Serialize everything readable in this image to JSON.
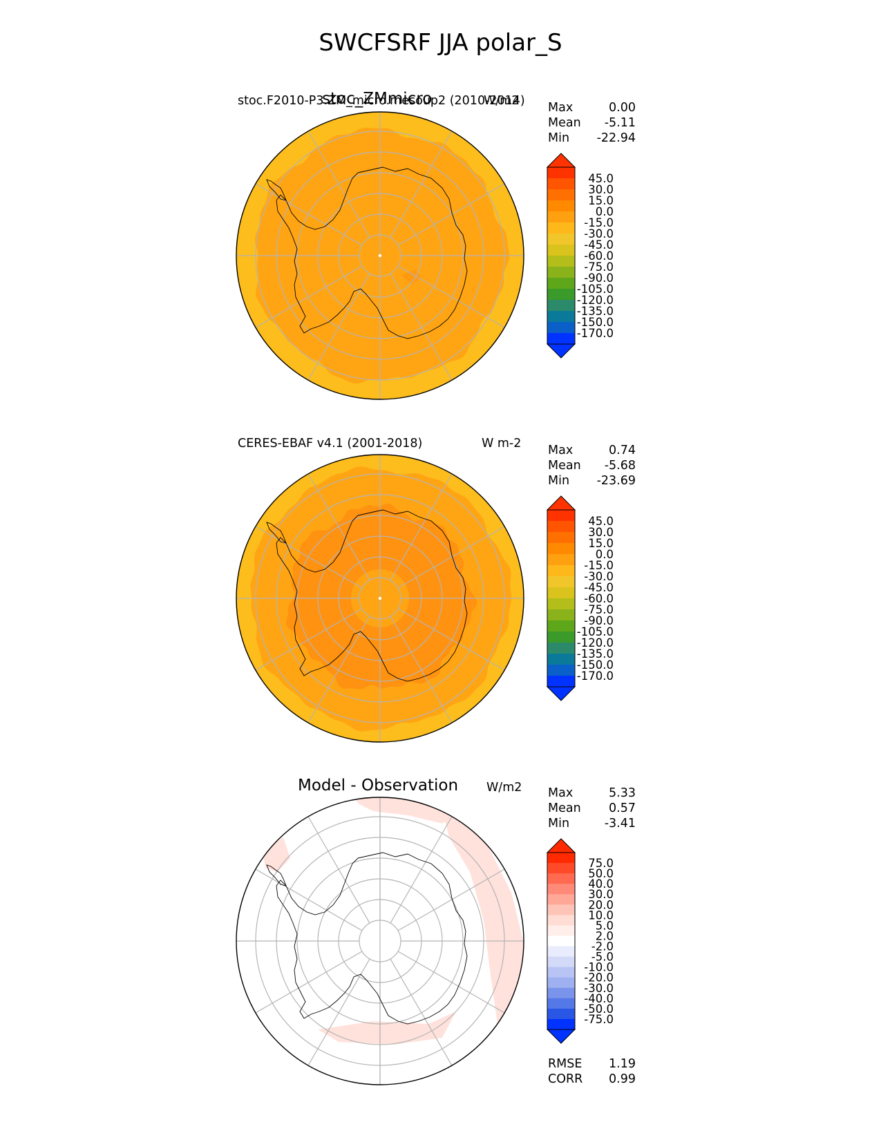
{
  "title": "SWCFSRF JJA polar_S",
  "panels": [
    {
      "id": "test",
      "left_label": "stoc.F2010-P3.ZM_micro.mesoup2 (2010-2014)",
      "overlap_label": "stoc_ZMmicro",
      "right_label": "W/m2",
      "stats": [
        {
          "k": "Max",
          "v": "0.00"
        },
        {
          "k": "Mean",
          "v": "-5.11"
        },
        {
          "k": "Min",
          "v": "-22.94"
        }
      ],
      "colorbar_ticks": [
        "45.0",
        "30.0",
        "15.0",
        "0.0",
        "-15.0",
        "-30.0",
        "-45.0",
        "-60.0",
        "-75.0",
        "-90.0",
        "-105.0",
        "-120.0",
        "-135.0",
        "-150.0",
        "-170.0"
      ],
      "colorbar_colors": [
        "#ff3300",
        "#ff5500",
        "#ff7000",
        "#ff8a00",
        "#ffa010",
        "#ffb81a",
        "#f0c62a",
        "#d9c31c",
        "#b3be1a",
        "#8ab21a",
        "#5ea61a",
        "#3a9a2a",
        "#2b8a6a",
        "#0b7a9a",
        "#0a60c8",
        "#0033ff"
      ],
      "fill_colors": {
        "outer": "#fdbd1c",
        "inner": "#ffa514",
        "patch": "#ff9a10"
      }
    },
    {
      "id": "ref",
      "left_label": "CERES-EBAF v4.1 (2001-2018)",
      "right_label": "W m-2",
      "stats": [
        {
          "k": "Max",
          "v": "0.74"
        },
        {
          "k": "Mean",
          "v": "-5.68"
        },
        {
          "k": "Min",
          "v": "-23.69"
        }
      ],
      "colorbar_ticks": [
        "45.0",
        "30.0",
        "15.0",
        "0.0",
        "-15.0",
        "-30.0",
        "-45.0",
        "-60.0",
        "-75.0",
        "-90.0",
        "-105.0",
        "-120.0",
        "-135.0",
        "-150.0",
        "-170.0"
      ],
      "colorbar_colors": [
        "#ff3300",
        "#ff5500",
        "#ff7000",
        "#ff8a00",
        "#ffa010",
        "#ffb81a",
        "#f0c62a",
        "#d9c31c",
        "#b3be1a",
        "#8ab21a",
        "#5ea61a",
        "#3a9a2a",
        "#2b8a6a",
        "#0b7a9a",
        "#0a60c8",
        "#0033ff"
      ],
      "fill_colors": {
        "outer": "#fdbd1c",
        "inner": "#ffa514",
        "patch": "#ff9210"
      }
    },
    {
      "id": "diff",
      "center_title": "Model - Observation",
      "right_label": "W/m2",
      "stats": [
        {
          "k": "Max",
          "v": "5.33"
        },
        {
          "k": "Mean",
          "v": "0.57"
        },
        {
          "k": "Min",
          "v": "-3.41"
        }
      ],
      "colorbar_ticks": [
        "75.0",
        "50.0",
        "40.0",
        "30.0",
        "20.0",
        "10.0",
        "5.0",
        "2.0",
        "-2.0",
        "-5.0",
        "-10.0",
        "-20.0",
        "-30.0",
        "-40.0",
        "-50.0",
        "-75.0"
      ],
      "colorbar_colors": [
        "#ff2a00",
        "#ff4a2a",
        "#ff6a50",
        "#ff8a78",
        "#ffa898",
        "#ffc4b8",
        "#ffdcd4",
        "#ffeeea",
        "#ffffff",
        "#e8ecfc",
        "#d2daf8",
        "#b8c4f4",
        "#9eb0f0",
        "#7a94ec",
        "#5478e8",
        "#2a56e6",
        "#0033ff"
      ],
      "fill_colors": {
        "outer": "#ffffff",
        "patch": "#ffe2dc"
      },
      "bottom_stats": [
        {
          "k": "RMSE",
          "v": "1.19"
        },
        {
          "k": "CORR",
          "v": "0.99"
        }
      ]
    }
  ],
  "chart_data": {
    "type": "heatmap",
    "title": "SWCFSRF JJA polar_S",
    "projection": "south polar stereographic",
    "maps": [
      {
        "name": "stoc.F2010-P3.ZM_micro.mesoup2 (2010-2014)",
        "units": "W/m2",
        "max": 0.0,
        "mean": -5.11,
        "min": -22.94,
        "levels": [
          -170,
          -150,
          -135,
          -120,
          -105,
          -90,
          -75,
          -60,
          -45,
          -30,
          -15,
          0,
          15,
          30,
          45
        ]
      },
      {
        "name": "CERES-EBAF v4.1 (2001-2018)",
        "units": "W m-2",
        "max": 0.74,
        "mean": -5.68,
        "min": -23.69,
        "levels": [
          -170,
          -150,
          -135,
          -120,
          -105,
          -90,
          -75,
          -60,
          -45,
          -30,
          -15,
          0,
          15,
          30,
          45
        ]
      },
      {
        "name": "Model - Observation",
        "units": "W/m2",
        "max": 5.33,
        "mean": 0.57,
        "min": -3.41,
        "rmse": 1.19,
        "corr": 0.99,
        "levels": [
          -75,
          -50,
          -40,
          -30,
          -20,
          -10,
          -5,
          -2,
          2,
          5,
          10,
          20,
          30,
          40,
          50,
          75
        ]
      }
    ]
  }
}
